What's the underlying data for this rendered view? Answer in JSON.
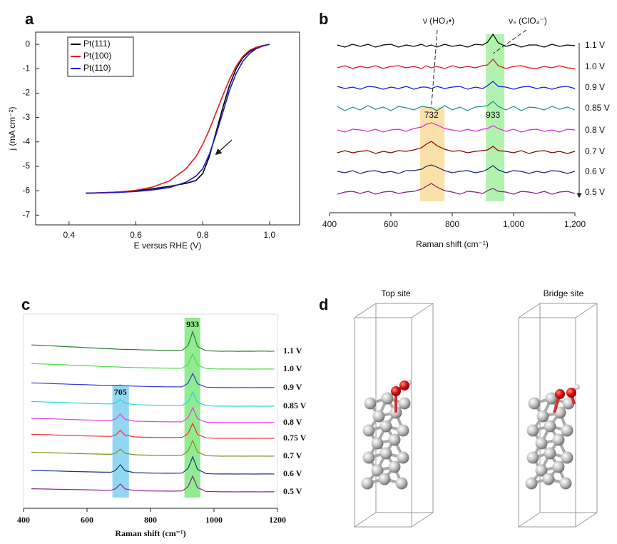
{
  "chart_data": [
    {
      "type": "line",
      "panel_label": "a",
      "x": [
        0.45,
        0.5,
        0.55,
        0.6,
        0.65,
        0.7,
        0.75,
        0.78,
        0.8,
        0.82,
        0.84,
        0.86,
        0.88,
        0.9,
        0.92,
        0.94,
        0.96,
        0.98,
        1.0
      ],
      "xlim": [
        0.3,
        1.09
      ],
      "xticks": [
        0.4,
        0.6,
        0.8,
        {
          "value": 1,
          "label": "1.0"
        }
      ],
      "ylim": [
        -7.4,
        0.5
      ],
      "yticks": [
        0,
        -1,
        -2,
        -3,
        -4,
        -5,
        -6,
        -7
      ],
      "xlabel": "E versus RHE (V)",
      "ylabel": "j (mA cm⁻²)",
      "legend": "upper left",
      "series": [
        {
          "name": "Pt(111)",
          "color": "#000000",
          "values": [
            -6.1,
            -6.08,
            -6.05,
            -6.0,
            -5.92,
            -5.82,
            -5.7,
            -5.58,
            -5.3,
            -4.6,
            -3.6,
            -2.6,
            -1.7,
            -1.0,
            -0.55,
            -0.3,
            -0.15,
            -0.07,
            0
          ]
        },
        {
          "name": "Pt(100)",
          "color": "#e01b1b",
          "values": [
            -6.1,
            -6.08,
            -6.05,
            -5.98,
            -5.85,
            -5.6,
            -5.1,
            -4.6,
            -4.1,
            -3.5,
            -2.8,
            -2.1,
            -1.45,
            -0.9,
            -0.5,
            -0.25,
            -0.12,
            -0.05,
            0
          ]
        },
        {
          "name": "Pt(110)",
          "color": "#1c1cc8",
          "values": [
            -6.1,
            -6.09,
            -6.07,
            -6.03,
            -5.97,
            -5.87,
            -5.65,
            -5.4,
            -5.1,
            -4.5,
            -3.7,
            -2.8,
            -1.9,
            -1.2,
            -0.7,
            -0.38,
            -0.18,
            -0.07,
            0
          ]
        }
      ]
    },
    {
      "type": "spectra",
      "panel_label": "b",
      "x": [
        425,
        450,
        475,
        500,
        525,
        550,
        575,
        600,
        625,
        650,
        675,
        700,
        715,
        732,
        750,
        775,
        800,
        825,
        850,
        875,
        900,
        915,
        933,
        950,
        975,
        1000,
        1025,
        1050,
        1075,
        1100,
        1125,
        1150,
        1175,
        1200
      ],
      "xlim": [
        400,
        1200
      ],
      "xticks": [
        400,
        600,
        800,
        {
          "value": 1000,
          "label": "1,000"
        },
        {
          "value": 1200,
          "label": "1,200"
        }
      ],
      "xlabel": "Raman shift (cm⁻¹)",
      "annotations": [
        "ν (HO₂•)",
        "νₛ (ClO₄⁻)"
      ],
      "highlights": [
        {
          "value": 732,
          "from": 695,
          "to": 775,
          "color": "#f9dc9a"
        },
        {
          "value": 933,
          "from": 910,
          "to": 970,
          "color": "#a3f0a0"
        }
      ],
      "series": [
        {
          "name": "1.1 V",
          "color": "#000000",
          "values": [
            0.1,
            -0.2,
            0.2,
            -0.1,
            0.2,
            -0.2,
            0.1,
            0.2,
            -0.2,
            0.1,
            -0.1,
            0.2,
            -0.1,
            0.1,
            -0.2,
            0.2,
            -0.1,
            0.1,
            -0.2,
            0.2,
            0.1,
            0.5,
            1.6,
            0.4,
            -0.1,
            0.2,
            -0.2,
            0.1,
            0.1,
            -0.2,
            0.2,
            -0.1,
            0.1,
            0
          ]
        },
        {
          "name": "1.0 V",
          "color": "#e01010",
          "values": [
            -0.1,
            0.2,
            -0.2,
            0.1,
            -0.1,
            0.2,
            -0.2,
            0.1,
            0.2,
            -0.1,
            0.1,
            -0.2,
            0.2,
            -0.1,
            0.1,
            -0.2,
            0.2,
            -0.1,
            0.1,
            -0.1,
            0.2,
            0.3,
            1.1,
            0.2,
            -0.2,
            0.1,
            0.2,
            -0.1,
            -0.2,
            0.1,
            -0.1,
            0.2,
            -0.1,
            -0.2
          ]
        },
        {
          "name": "0.9 V",
          "color": "#1515d0",
          "values": [
            0.2,
            -0.1,
            0.1,
            -0.2,
            0.2,
            0.1,
            -0.2,
            0.1,
            -0.1,
            0.2,
            -0.2,
            0.1,
            0.1,
            -0.1,
            0.2,
            -0.1,
            0.1,
            0.2,
            -0.2,
            0.1,
            -0.1,
            0.3,
            0.9,
            0.2,
            0.1,
            -0.2,
            0.1,
            0.2,
            -0.1,
            0.1,
            -0.2,
            0.1,
            0.2,
            -0.1
          ]
        },
        {
          "name": "0.85 V",
          "color": "#1a8a8a",
          "values": [
            0.3,
            -0.3,
            0.2,
            -0.2,
            0.4,
            -0.1,
            0.2,
            -0.3,
            0.3,
            0.1,
            -0.2,
            0.3,
            0.2,
            0.1,
            -0.3,
            0.4,
            -0.2,
            0.2,
            -0.3,
            0.2,
            0.3,
            0.4,
            1.0,
            0.3,
            -0.2,
            0.3,
            -0.3,
            0.2,
            0.1,
            -0.2,
            0.3,
            -0.1,
            0.2,
            -0.2
          ]
        },
        {
          "name": "0.8 V",
          "color": "#e020e0",
          "values": [
            0.1,
            -0.2,
            0.2,
            0.1,
            -0.1,
            0.2,
            -0.2,
            0.1,
            0.2,
            -0.1,
            0.3,
            0.5,
            0.9,
            1.1,
            0.8,
            0.3,
            0.1,
            -0.1,
            0.2,
            -0.1,
            0.2,
            0.3,
            0.7,
            0.3,
            -0.1,
            0.2,
            -0.2,
            0.1,
            0.2,
            -0.1,
            0.1,
            -0.2,
            0.2,
            0.1
          ]
        },
        {
          "name": "0.7 V",
          "color": "#8b0000",
          "values": [
            -0.1,
            0.2,
            -0.1,
            0.1,
            0.2,
            -0.2,
            0.1,
            -0.1,
            0.2,
            0.1,
            0.3,
            0.6,
            1.1,
            1.5,
            0.9,
            0.4,
            0.1,
            0.2,
            -0.1,
            0.1,
            0.2,
            0.3,
            0.8,
            0.2,
            0.1,
            -0.1,
            0.2,
            -0.2,
            0.1,
            0.2,
            -0.1,
            0.1,
            -0.2,
            0.1
          ]
        },
        {
          "name": "0.6 V",
          "color": "#1a237e",
          "values": [
            0.1,
            -0.1,
            0.2,
            -0.2,
            0.1,
            0.2,
            -0.1,
            0.1,
            -0.2,
            0.2,
            0.2,
            0.4,
            0.8,
            1.0,
            0.7,
            0.2,
            -0.1,
            0.1,
            0.2,
            -0.1,
            0.1,
            0.4,
            0.9,
            0.3,
            -0.1,
            0.2,
            0.1,
            -0.2,
            0.1,
            -0.1,
            0.2,
            0.1,
            -0.2,
            0.1
          ]
        },
        {
          "name": "0.5 V",
          "color": "#7b1f7b",
          "values": [
            -0.2,
            0.1,
            0.2,
            -0.1,
            0.2,
            -0.2,
            0.1,
            0.2,
            -0.1,
            0.1,
            0.2,
            0.5,
            0.9,
            1.3,
            0.8,
            0.3,
            0.1,
            -0.2,
            0.2,
            0.1,
            -0.1,
            0.3,
            0.6,
            0.2,
            0.1,
            -0.2,
            0.2,
            0.1,
            -0.1,
            0.2,
            -0.2,
            0.1,
            0.2,
            -0.1
          ]
        }
      ]
    },
    {
      "type": "spectra",
      "panel_label": "c",
      "x": [
        425,
        450,
        475,
        500,
        525,
        550,
        575,
        600,
        625,
        650,
        675,
        690,
        705,
        720,
        750,
        775,
        800,
        825,
        850,
        875,
        900,
        918,
        933,
        948,
        975,
        1000,
        1025,
        1050,
        1075,
        1100,
        1125,
        1150,
        1175,
        1190
      ],
      "xlim": [
        400,
        1200
      ],
      "xticks": [
        400,
        600,
        800,
        1000,
        1200
      ],
      "xlabel": "Raman shift (cm⁻¹)",
      "highlights": [
        {
          "value": 705,
          "from": 680,
          "to": 732,
          "color": "#7fd0f0"
        },
        {
          "value": 933,
          "from": 907,
          "to": 957,
          "color": "#7ee87e"
        }
      ],
      "series": [
        {
          "name": "1.1 V",
          "color": "#2e7d32",
          "values": [
            0.8,
            0.76,
            0.7,
            0.67,
            0.6,
            0.55,
            0.52,
            0.45,
            0.41,
            0.35,
            0.31,
            0.28,
            0.25,
            0.24,
            0.21,
            0.17,
            0.16,
            0.13,
            0.11,
            0.1,
            0.12,
            0.7,
            2.5,
            0.6,
            0.06,
            0.03,
            0,
            0.02,
            -0.01,
            0.01,
            0,
            0.03,
            0,
            0.01
          ]
        },
        {
          "name": "1.0 V",
          "color": "#4cdc4c",
          "values": [
            0.7,
            0.66,
            0.63,
            0.6,
            0.55,
            0.5,
            0.46,
            0.42,
            0.38,
            0.33,
            0.3,
            0.27,
            0.26,
            0.23,
            0.2,
            0.17,
            0.15,
            0.14,
            0.12,
            0.1,
            0.11,
            0.6,
            1.9,
            0.5,
            0.07,
            0.03,
            0.01,
            0.02,
            0,
            0.01,
            0,
            0.02,
            0.01,
            0
          ]
        },
        {
          "name": "0.9 V",
          "color": "#3a3ad0",
          "values": [
            0.6,
            0.57,
            0.55,
            0.5,
            0.47,
            0.43,
            0.4,
            0.37,
            0.33,
            0.3,
            0.27,
            0.27,
            0.33,
            0.25,
            0.19,
            0.16,
            0.14,
            0.13,
            0.11,
            0.1,
            0.11,
            0.55,
            1.8,
            0.5,
            0.06,
            0.03,
            0.01,
            0.01,
            0,
            0.02,
            0,
            0.01,
            0.02,
            0
          ]
        },
        {
          "name": "0.85 V",
          "color": "#20d8d8",
          "values": [
            0.6,
            0.56,
            0.53,
            0.5,
            0.46,
            0.43,
            0.39,
            0.36,
            0.33,
            0.3,
            0.28,
            0.4,
            0.85,
            0.38,
            0.2,
            0.16,
            0.14,
            0.12,
            0.11,
            0.1,
            0.11,
            0.55,
            1.8,
            0.5,
            0.07,
            0.02,
            0.01,
            0.02,
            0,
            0.01,
            0.02,
            0,
            0.01,
            0
          ]
        },
        {
          "name": "0.8 V",
          "color": "#e040e0",
          "values": [
            0.55,
            0.52,
            0.5,
            0.47,
            0.44,
            0.4,
            0.37,
            0.34,
            0.31,
            0.29,
            0.27,
            0.45,
            1.1,
            0.42,
            0.19,
            0.16,
            0.14,
            0.12,
            0.11,
            0.1,
            0.11,
            0.6,
            1.9,
            0.5,
            0.06,
            0.03,
            0.01,
            0.01,
            0,
            0.02,
            0.01,
            0,
            0.01,
            0.02
          ]
        },
        {
          "name": "0.75 V",
          "color": "#ee3030",
          "values": [
            0.5,
            0.48,
            0.46,
            0.43,
            0.4,
            0.37,
            0.34,
            0.31,
            0.29,
            0.27,
            0.25,
            0.42,
            1.0,
            0.4,
            0.18,
            0.15,
            0.13,
            0.12,
            0.1,
            0.1,
            0.12,
            0.6,
            1.9,
            0.5,
            0.06,
            0.02,
            0.01,
            0.02,
            0,
            0.01,
            0,
            0.02,
            0,
            0.01
          ]
        },
        {
          "name": "0.7 V",
          "color": "#8a8a20",
          "values": [
            0.5,
            0.47,
            0.45,
            0.42,
            0.39,
            0.36,
            0.33,
            0.3,
            0.28,
            0.26,
            0.24,
            0.38,
            0.9,
            0.36,
            0.18,
            0.15,
            0.13,
            0.11,
            0.1,
            0.1,
            0.12,
            0.65,
            2.0,
            0.55,
            0.06,
            0.03,
            0,
            0.02,
            0.01,
            0,
            0.02,
            0.01,
            0,
            0.01
          ]
        },
        {
          "name": "0.6 V",
          "color": "#20308a",
          "values": [
            0.45,
            0.43,
            0.41,
            0.39,
            0.36,
            0.33,
            0.31,
            0.28,
            0.26,
            0.24,
            0.23,
            0.45,
            1.2,
            0.42,
            0.17,
            0.15,
            0.13,
            0.11,
            0.1,
            0.1,
            0.12,
            0.7,
            2.2,
            0.6,
            0.06,
            0.02,
            0.01,
            0.01,
            0,
            0.02,
            0,
            0.01,
            0.01,
            0
          ]
        },
        {
          "name": "0.5 V",
          "color": "#902090",
          "values": [
            0.4,
            0.38,
            0.36,
            0.34,
            0.32,
            0.3,
            0.28,
            0.26,
            0.24,
            0.22,
            0.21,
            0.4,
            1.0,
            0.38,
            0.16,
            0.14,
            0.12,
            0.11,
            0.1,
            0.1,
            0.12,
            0.65,
            2.0,
            0.55,
            0.06,
            0.03,
            0.01,
            0.02,
            0,
            0.01,
            0.02,
            0,
            0.01,
            0.01
          ]
        }
      ]
    }
  ],
  "panel_d": {
    "panel_label": "d",
    "titles": [
      "Top site",
      "Bridge site"
    ]
  }
}
